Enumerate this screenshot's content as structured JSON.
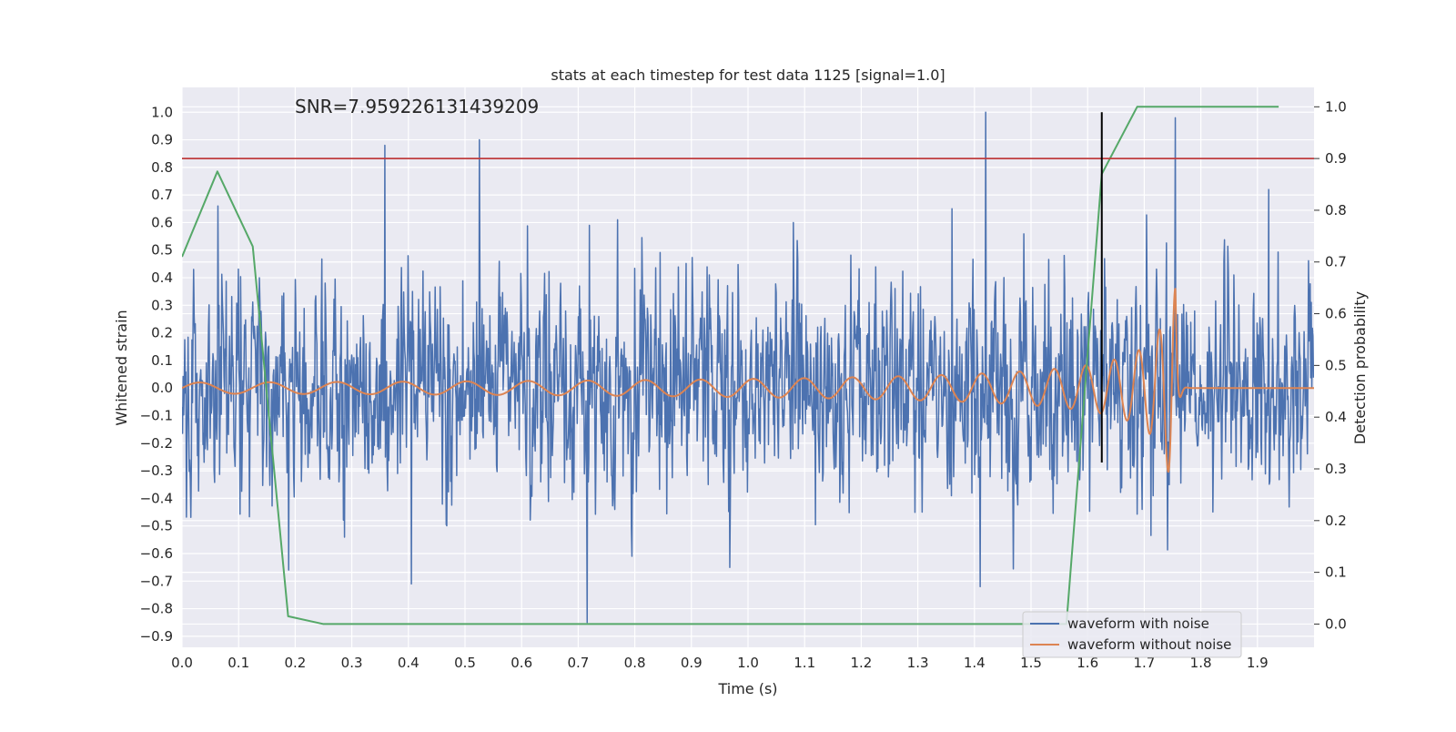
{
  "chart_data": {
    "type": "line",
    "title": "stats at each timestep for test data 1125 [signal=1.0]",
    "annotation": "SNR=7.959226131439209",
    "xlabel": "Time (s)",
    "ylabel_left": "Whitened strain",
    "ylabel_right": "Detection probability",
    "xlim": [
      0.0,
      2.0
    ],
    "ylim_left": [
      -0.94,
      1.09
    ],
    "ylim_right": [
      -0.045,
      1.0375
    ],
    "grid": true,
    "x_ticks": [
      "0.0",
      "0.1",
      "0.2",
      "0.3",
      "0.4",
      "0.5",
      "0.6",
      "0.7",
      "0.8",
      "0.9",
      "1.0",
      "1.1",
      "1.2",
      "1.3",
      "1.4",
      "1.5",
      "1.6",
      "1.7",
      "1.8",
      "1.9"
    ],
    "y_left_ticks": [
      "1.0",
      "0.9",
      "0.8",
      "0.7",
      "0.6",
      "0.5",
      "0.4",
      "0.3",
      "0.2",
      "0.1",
      "0.0",
      "-0.1",
      "-0.2",
      "-0.3",
      "-0.4",
      "-0.5",
      "-0.6",
      "-0.7",
      "-0.8",
      "-0.9"
    ],
    "y_right_ticks": [
      "1.0",
      "0.9",
      "0.8",
      "0.7",
      "0.6",
      "0.5",
      "0.4",
      "0.3",
      "0.2",
      "0.1",
      "0.0"
    ],
    "threshold_line": {
      "axis": "right",
      "y": 0.9,
      "color": "#c03d3e"
    },
    "vertical_marker": {
      "x": 1.625,
      "y_range_left": [
        -0.27,
        1.0
      ],
      "color": "#000000"
    },
    "series": [
      {
        "name": "waveform with noise",
        "axis": "left",
        "color": "#4c72b0",
        "style": "noise",
        "sample_rate": 1024,
        "amplitude_std": 0.2,
        "peaks": [
          {
            "x": 0.358,
            "y": 0.88
          },
          {
            "x": 0.525,
            "y": 0.9
          },
          {
            "x": 1.42,
            "y": 1.0
          },
          {
            "x": 1.755,
            "y": 0.98
          },
          {
            "x": 0.716,
            "y": -0.85
          },
          {
            "x": 1.41,
            "y": -0.72
          },
          {
            "x": 0.405,
            "y": -0.71
          },
          {
            "x": 0.188,
            "y": -0.66
          },
          {
            "x": 0.063,
            "y": 0.66
          },
          {
            "x": 0.72,
            "y": 0.59
          },
          {
            "x": 0.77,
            "y": 0.61
          },
          {
            "x": 1.08,
            "y": 0.6
          },
          {
            "x": 1.36,
            "y": 0.65
          },
          {
            "x": 1.92,
            "y": 0.72
          }
        ]
      },
      {
        "name": "waveform without noise",
        "axis": "left",
        "color": "#dd8452",
        "style": "chirp",
        "t_merger": 1.755,
        "amp_start": 0.02,
        "amp_peak": 0.36,
        "freq_start": 8,
        "freq_end": 45,
        "post_merger_value": 0.0
      },
      {
        "name": "detection probability",
        "axis": "right",
        "color": "#55a868",
        "x": [
          0.0,
          0.0625,
          0.125,
          0.1875,
          0.25,
          0.3125,
          0.375,
          0.4375,
          0.5,
          0.5625,
          0.625,
          0.6875,
          0.75,
          0.8125,
          0.875,
          0.9375,
          1.0,
          1.0625,
          1.125,
          1.1875,
          1.25,
          1.3125,
          1.375,
          1.4375,
          1.5,
          1.5625,
          1.625,
          1.6875,
          1.75,
          1.8125,
          1.875,
          1.9375
        ],
        "values": [
          0.71,
          0.875,
          0.73,
          0.015,
          0.0,
          0.0,
          0.0,
          0.0,
          0.0,
          0.0,
          0.0,
          0.0,
          0.0,
          0.0,
          0.0,
          0.0,
          0.0,
          0.0,
          0.0,
          0.0,
          0.0,
          0.0,
          0.0,
          0.0,
          0.0,
          0.0,
          0.87,
          1.0,
          1.0,
          1.0,
          1.0,
          1.0
        ]
      }
    ],
    "legend": {
      "placement": "lower right",
      "entries": [
        "waveform with noise",
        "waveform without noise"
      ]
    }
  }
}
